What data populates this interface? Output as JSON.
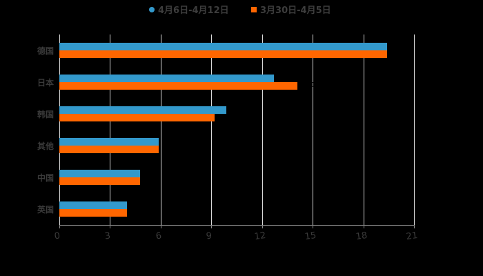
{
  "chart_data": {
    "type": "bar",
    "orientation": "horizontal",
    "title": "",
    "xlabel": "",
    "ylabel": "",
    "categories": [
      "德国",
      "日本",
      "韩国",
      "其他",
      "中国",
      "英国"
    ],
    "series": [
      {
        "name": "4月6日-4月12日",
        "color": "#3399cc",
        "marker": "circle",
        "values": [
          19.4,
          12.7,
          9.9,
          5.9,
          4.8,
          4.0
        ]
      },
      {
        "name": "3月30日-4月5日",
        "color": "#ff6600",
        "marker": "square",
        "values": [
          19.4,
          14.1,
          9.2,
          5.9,
          4.8,
          4.0
        ]
      }
    ],
    "xlim": [
      0,
      21
    ],
    "xticks": [
      "0",
      "3",
      "6",
      "9",
      "12",
      "15",
      "18",
      "21"
    ],
    "grid": true,
    "legend_position": "top"
  },
  "legend": [
    {
      "label": "4月6日-4月12日",
      "color": "#3399cc"
    },
    {
      "label": "3月30日-4月5日",
      "color": "#ff6600"
    }
  ],
  "colors": {
    "background": "#000000",
    "series1": "#3399cc",
    "series2": "#ff6600",
    "grid": "#d9d9d9",
    "text": "#3a3a3a"
  }
}
